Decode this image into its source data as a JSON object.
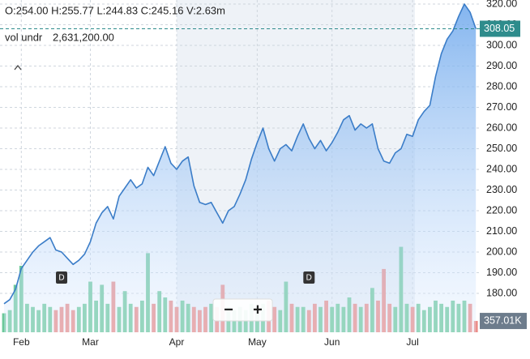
{
  "header": {
    "ohlc": "O:254.00  H:255.77  L:244.83  C:245.16  V:2.63m",
    "zoom_out": "−",
    "zoom_in": "+"
  },
  "chart_data": {
    "type": "line",
    "categories": [
      null,
      null,
      null,
      "Feb",
      null,
      null,
      null,
      null,
      null,
      null,
      null,
      null,
      null,
      null,
      null,
      "Mar",
      null,
      null,
      null,
      null,
      null,
      null,
      null,
      null,
      null,
      null,
      null,
      null,
      null,
      null,
      "Apr",
      null,
      null,
      null,
      null,
      null,
      null,
      null,
      null,
      null,
      null,
      null,
      null,
      null,
      "May",
      null,
      null,
      null,
      null,
      null,
      null,
      null,
      null,
      null,
      null,
      null,
      null,
      "Jun",
      null,
      null,
      null,
      null,
      null,
      null,
      null,
      null,
      null,
      null,
      null,
      null,
      null,
      "Jul",
      null,
      null,
      null,
      null,
      null,
      null,
      null,
      null,
      null,
      null,
      null
    ],
    "series": [
      {
        "color": "#3b7dc8",
        "values": [
          175,
          177,
          182,
          192,
          196,
          200,
          203,
          205,
          207,
          201,
          200,
          197,
          194,
          196,
          199,
          205,
          214,
          219,
          222,
          216,
          227,
          231,
          235,
          231,
          233,
          241,
          237,
          244,
          251,
          243,
          240,
          244,
          246,
          232,
          224,
          223,
          224,
          219,
          214,
          220,
          222,
          228,
          235,
          245,
          253,
          260,
          250,
          244,
          250,
          252,
          249,
          256,
          262,
          255,
          250,
          254,
          249,
          253,
          258,
          264,
          266,
          259,
          262,
          260,
          262,
          250,
          244,
          243,
          248,
          250,
          257,
          256,
          264,
          268,
          271,
          285,
          296,
          303,
          307,
          314,
          320,
          316,
          308.05
        ]
      },
      {
        "name": "vol undr",
        "axis": "y2",
        "values": [
          0.6,
          0.7,
          1.5,
          2.1,
          0.9,
          0.8,
          0.7,
          0.9,
          0.8,
          0.7,
          0.8,
          0.9,
          0.7,
          0.8,
          0.9,
          1.6,
          1.0,
          1.5,
          0.9,
          1.6,
          0.8,
          1.3,
          0.9,
          0.8,
          1.0,
          2.5,
          0.9,
          1.3,
          1.1,
          1.0,
          0.8,
          1.0,
          0.9,
          0.8,
          0.7,
          0.8,
          0.9,
          0.8,
          1.5,
          0.8,
          0.7,
          0.8,
          0.7,
          0.9,
          0.8,
          0.9,
          1.0,
          0.8,
          0.7,
          1.6,
          0.9,
          0.8,
          0.8,
          0.7,
          0.9,
          0.8,
          1.0,
          0.8,
          0.9,
          0.8,
          1.1,
          0.9,
          0.8,
          0.9,
          1.4,
          1.0,
          2.0,
          0.9,
          0.8,
          2.7,
          0.9,
          0.8,
          0.9,
          0.7,
          0.8,
          1.0,
          0.9,
          0.8,
          1.0,
          0.9,
          1.0,
          0.9,
          0.357
        ]
      }
    ],
    "volume_label": {
      "value": 2631200,
      "label": "2,631,200.00"
    },
    "up_color": "#6cc99a",
    "down_color": "#ec8a86",
    "ylim": [
      161.2,
      320
    ],
    "yticks": [
      {
        "value": 180,
        "label": "180.00"
      },
      {
        "value": 190,
        "label": "190.00"
      },
      {
        "value": 200,
        "label": "200.00"
      },
      {
        "value": 210,
        "label": "210.00"
      },
      {
        "value": 220,
        "label": "220.00"
      },
      {
        "value": 230,
        "label": "230.00"
      },
      {
        "value": 240,
        "label": "240.00"
      },
      {
        "value": 250,
        "label": "250.00"
      },
      {
        "value": 260,
        "label": "260.00"
      },
      {
        "value": 270,
        "label": "270.00"
      },
      {
        "value": 280,
        "label": "280.00"
      },
      {
        "value": 290,
        "label": "290.00"
      },
      {
        "value": 300,
        "label": "300.00"
      },
      {
        "value": 310,
        "label": "310.00"
      },
      {
        "value": 320,
        "label": "320.00"
      }
    ],
    "y2lim": [
      0,
      10.5
    ],
    "last_price": 308.05,
    "last_volume": {
      "value": 0.35701,
      "label": "357.01K"
    },
    "annotations": [
      {
        "label": "D",
        "index": 10
      },
      {
        "label": "D",
        "index": 53
      }
    ],
    "grid": true
  }
}
